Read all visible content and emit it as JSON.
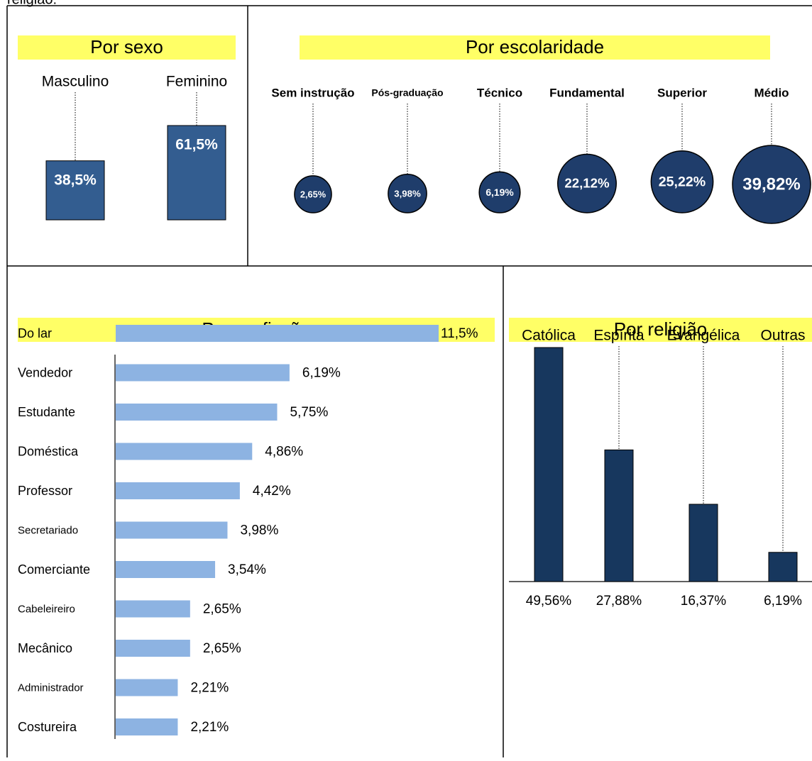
{
  "header": {
    "text": "religião:"
  },
  "chart_data": [
    {
      "type": "bar",
      "title": "Por sexo",
      "categories": [
        "Masculino",
        "Feminino"
      ],
      "values": [
        38.5,
        61.5
      ],
      "value_labels": [
        "38,5%",
        "61,5%"
      ],
      "color": "#335d90",
      "label_position": "inside"
    },
    {
      "type": "bubble",
      "title": "Por escolaridade",
      "categories": [
        "Sem instrução",
        "Pós-graduação",
        "Técnico",
        "Fundamental",
        "Superior",
        "Médio"
      ],
      "values": [
        2.65,
        3.98,
        6.19,
        22.12,
        25.22,
        39.82
      ],
      "value_labels": [
        "2,65%",
        "3,98%",
        "6,19%",
        "22,12%",
        "25,22%",
        "39,82%"
      ],
      "color": "#1f3d6b"
    },
    {
      "type": "barh",
      "title": "Por profissão",
      "categories": [
        "Do lar",
        "Vendedor",
        "Estudante",
        "Doméstica",
        "Professor",
        "Secretariado",
        "Comerciante",
        "Cabeleireiro",
        "Mecânico",
        "Administrador",
        "Costureira"
      ],
      "values": [
        11.5,
        6.19,
        5.75,
        4.86,
        4.42,
        3.98,
        3.54,
        2.65,
        2.65,
        2.21,
        2.21
      ],
      "value_labels": [
        "11,5%",
        "6,19%",
        "5,75%",
        "4,86%",
        "4,42%",
        "3,98%",
        "3,54%",
        "2,65%",
        "2,65%",
        "2,21%",
        "2,21%"
      ],
      "color": "#8db3e2"
    },
    {
      "type": "bar",
      "title": "Por religião",
      "categories": [
        "Católica",
        "Espírita",
        "Evangélica",
        "Outras"
      ],
      "values": [
        49.56,
        27.88,
        16.37,
        6.19
      ],
      "value_labels": [
        "49,56%",
        "27,88%",
        "16,37%",
        "6,19%"
      ],
      "color": "#17375e",
      "label_position": "below"
    }
  ]
}
